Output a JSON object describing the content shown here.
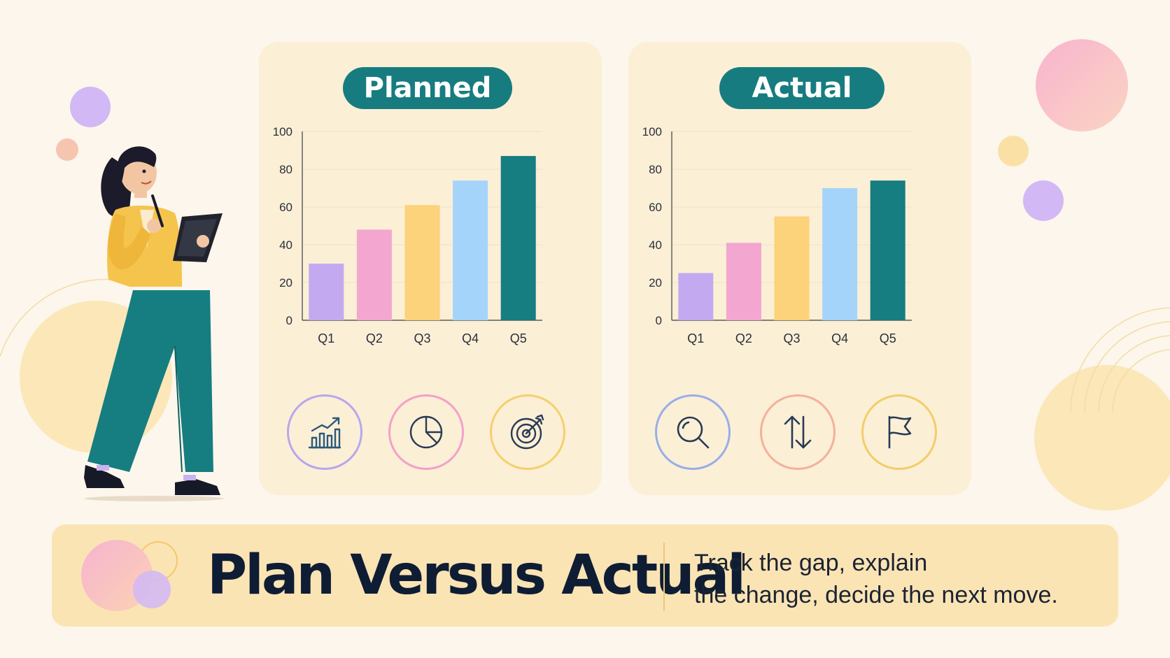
{
  "colors": {
    "background": "#fcf6ec",
    "panel": "#fbefd6",
    "title_pill": "#177c80",
    "footer": "#fbe4b4",
    "bar_colors": [
      "#c3aaf0",
      "#f3a6cf",
      "#fcd27a",
      "#a5d4fa",
      "#167d80"
    ]
  },
  "chart_data": [
    {
      "type": "bar",
      "title": "Planned",
      "categories": [
        "Q1",
        "Q2",
        "Q3",
        "Q4",
        "Q5"
      ],
      "values": [
        30,
        48,
        61,
        74,
        87
      ],
      "ylim": [
        0,
        100
      ],
      "yticks": [
        0,
        20,
        40,
        60,
        80,
        100
      ],
      "grid": true,
      "legend": "none"
    },
    {
      "type": "bar",
      "title": "Actual",
      "categories": [
        "Q1",
        "Q2",
        "Q3",
        "Q4",
        "Q5"
      ],
      "values": [
        25,
        41,
        55,
        70,
        74
      ],
      "ylim": [
        0,
        100
      ],
      "yticks": [
        0,
        20,
        40,
        60,
        80,
        100
      ],
      "grid": true,
      "legend": "none"
    }
  ],
  "planned_icons": [
    {
      "name": "growth-chart-icon",
      "ring": "#b9a6ee"
    },
    {
      "name": "pie-chart-icon",
      "ring": "#f2a1c8"
    },
    {
      "name": "target-icon",
      "ring": "#f6cf6e"
    }
  ],
  "actual_icons": [
    {
      "name": "magnifier-icon",
      "ring": "#98aee9"
    },
    {
      "name": "up-down-arrows-icon",
      "ring": "#f4b199"
    },
    {
      "name": "flag-icon",
      "ring": "#f3cd6a"
    }
  ],
  "footer": {
    "title": "Plan Versus Actual",
    "subtitle_line1": "Track the gap, explain",
    "subtitle_line2": "the change, decide the next move."
  }
}
